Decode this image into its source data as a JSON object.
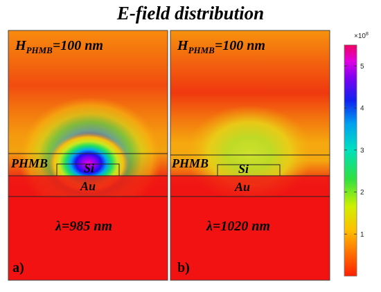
{
  "title": "E-field distribution",
  "panels": [
    {
      "h_label_main": "H",
      "h_label_sub": "PHMB",
      "h_label_value": "=100 nm",
      "layer_polymer": "PHMB",
      "layer_particle": "Si",
      "layer_metal": "Au",
      "wavelength": "λ=985 nm",
      "panel_tag": "a)"
    },
    {
      "h_label_main": "H",
      "h_label_sub": "PHMB",
      "h_label_value": "=100 nm",
      "layer_polymer": "PHMB",
      "layer_particle": "Si",
      "layer_metal": "Au",
      "wavelength": "λ=1020 nm",
      "panel_tag": "b)"
    }
  ],
  "colorbar": {
    "multiplier": "×10",
    "multiplier_exp": "8",
    "ticks": [
      "5",
      "4",
      "3",
      "2",
      "1"
    ],
    "tick_values": [
      5,
      4,
      3,
      2,
      1
    ],
    "min": 0,
    "max": 5.5
  }
}
